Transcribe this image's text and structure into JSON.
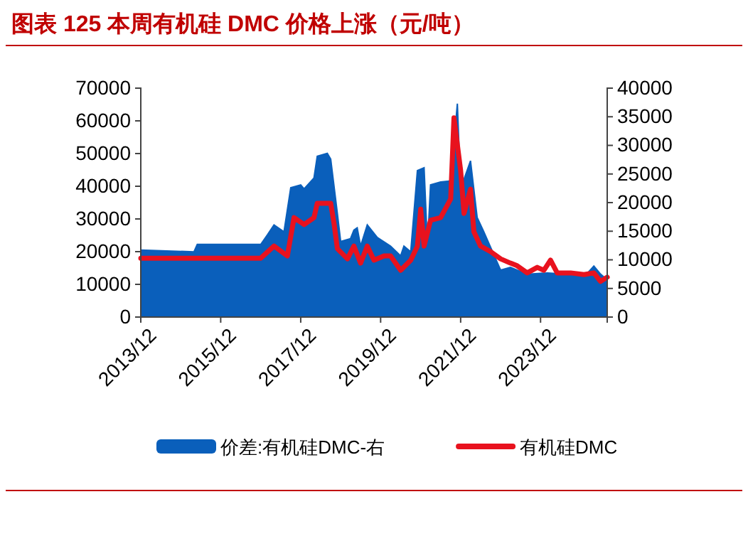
{
  "chart_data": {
    "type": "line",
    "title": "图表 125   本周有机硅 DMC 价格上涨（元/吨）",
    "xlim": [
      "2013-12",
      "2025-08"
    ],
    "xticks": [
      {
        "value": "2013-12",
        "label": "2013/12"
      },
      {
        "value": "2015-12",
        "label": "2015/12"
      },
      {
        "value": "2017-12",
        "label": "2017/12"
      },
      {
        "value": "2019-12",
        "label": "2019/12"
      },
      {
        "value": "2021-12",
        "label": "2021/12"
      },
      {
        "value": "2023-12",
        "label": "2023/12"
      }
    ],
    "ylim": [
      0,
      70000
    ],
    "yticks": [
      0,
      10000,
      20000,
      30000,
      40000,
      50000,
      60000,
      70000
    ],
    "y2lim": [
      0,
      40000
    ],
    "y2ticks": [
      0,
      5000,
      10000,
      15000,
      20000,
      25000,
      30000,
      35000,
      40000
    ],
    "legend": "bottom",
    "grid": false,
    "series": [
      {
        "name": "价差:有机硅DMC-右",
        "type": "area",
        "axis": "y2",
        "color": "#0a5fbb",
        "x": [
          "2013-12",
          "2015-04",
          "2015-05",
          "2016-12",
          "2017-02",
          "2017-04",
          "2017-07",
          "2017-09",
          "2017-12",
          "2018-01",
          "2018-04",
          "2018-05",
          "2018-08",
          "2018-09",
          "2018-11",
          "2018-12",
          "2019-03",
          "2019-04",
          "2019-05",
          "2019-06",
          "2019-08",
          "2019-11",
          "2020-03",
          "2020-06",
          "2020-07",
          "2020-09",
          "2020-11",
          "2021-01",
          "2021-02",
          "2021-03",
          "2021-06",
          "2021-09",
          "2021-11",
          "2021-12",
          "2022-03",
          "2022-05",
          "2022-07",
          "2022-12",
          "2023-03",
          "2023-05",
          "2023-08",
          "2024-02",
          "2024-08",
          "2025-01",
          "2025-04",
          "2025-06",
          "2025-08"
        ],
        "values": [
          11700,
          11400,
          12700,
          12700,
          14400,
          16100,
          14900,
          22600,
          23100,
          22400,
          24300,
          28100,
          28600,
          27600,
          18100,
          13200,
          13700,
          15200,
          15600,
          12400,
          16100,
          13900,
          12400,
          10700,
          12400,
          11400,
          25600,
          26100,
          12400,
          23100,
          23600,
          23800,
          37300,
          22400,
          27300,
          17400,
          14900,
          8200,
          8700,
          8200,
          7500,
          7700,
          7500,
          7000,
          8900,
          7500,
          6500
        ]
      },
      {
        "name": "有机硅DMC",
        "color": "#e8121e",
        "x": [
          "2013-12",
          "2016-12",
          "2017-04",
          "2017-08",
          "2017-10",
          "2018-01",
          "2018-04",
          "2018-05",
          "2018-09",
          "2018-10",
          "2018-11",
          "2019-02",
          "2019-04",
          "2019-06",
          "2019-08",
          "2019-10",
          "2020-01",
          "2020-03",
          "2020-06",
          "2020-09",
          "2020-11",
          "2020-12",
          "2021-01",
          "2021-03",
          "2021-06",
          "2021-09",
          "2021-10",
          "2021-12",
          "2022-01",
          "2022-03",
          "2022-04",
          "2022-06",
          "2022-09",
          "2022-12",
          "2023-03",
          "2023-05",
          "2023-08",
          "2023-11",
          "2024-01",
          "2024-03",
          "2024-05",
          "2024-09",
          "2025-01",
          "2025-04",
          "2025-06",
          "2025-08"
        ],
        "values": [
          18000,
          18000,
          21700,
          18700,
          30400,
          28300,
          30400,
          34800,
          34800,
          28700,
          20900,
          17800,
          21700,
          16500,
          21700,
          17400,
          18700,
          18700,
          14300,
          17400,
          21700,
          33000,
          21700,
          29600,
          30400,
          36100,
          60900,
          44800,
          31700,
          39100,
          26100,
          21700,
          20000,
          17800,
          16500,
          15700,
          13500,
          15200,
          14300,
          17400,
          13500,
          13500,
          13000,
          13500,
          10900,
          12200
        ]
      }
    ]
  }
}
